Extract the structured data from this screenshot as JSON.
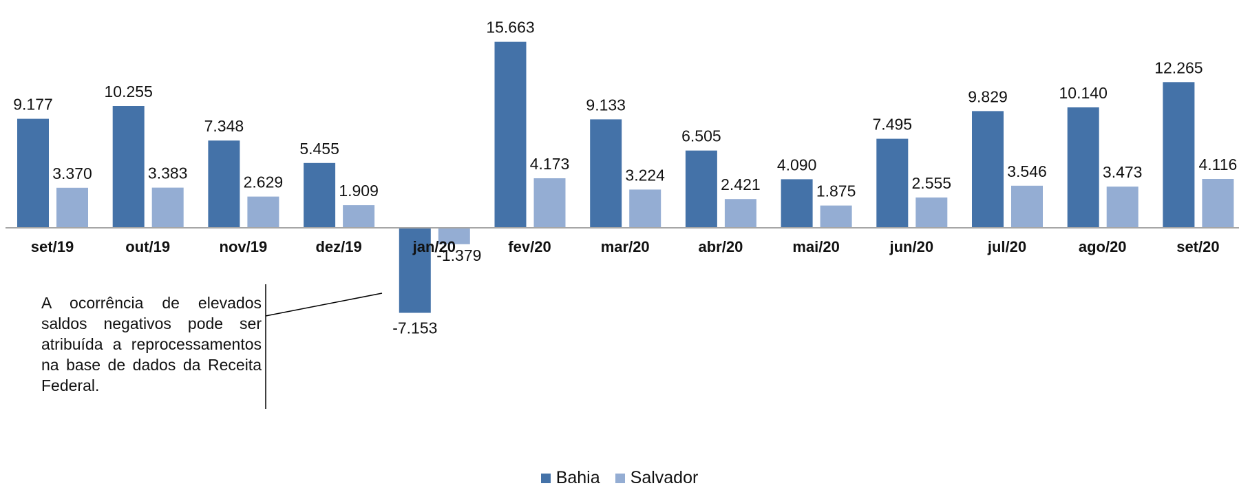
{
  "chart_data": {
    "type": "bar",
    "categories": [
      "set/19",
      "out/19",
      "nov/19",
      "dez/19",
      "jan/20",
      "fev/20",
      "mar/20",
      "abr/20",
      "mai/20",
      "jun/20",
      "jul/20",
      "ago/20",
      "set/20"
    ],
    "series": [
      {
        "name": "Bahia",
        "color": "#4472A8",
        "values": [
          9177,
          10255,
          7348,
          5455,
          -7153,
          15663,
          9133,
          6505,
          4090,
          7495,
          9829,
          10140,
          12265
        ],
        "labels": [
          "9.177",
          "10.255",
          "7.348",
          "5.455",
          "-7.153",
          "15.663",
          "9.133",
          "6.505",
          "4.090",
          "7.495",
          "9.829",
          "10.140",
          "12.265"
        ]
      },
      {
        "name": "Salvador",
        "color": "#94ADD3",
        "values": [
          3370,
          3383,
          2629,
          1909,
          -1379,
          4173,
          3224,
          2421,
          1875,
          2555,
          3546,
          3473,
          4116
        ],
        "labels": [
          "3.370",
          "3.383",
          "2.629",
          "1.909",
          "-1.379",
          "4.173",
          "3.224",
          "2.421",
          "1.875",
          "2.555",
          "3.546",
          "3.473",
          "4.116"
        ]
      }
    ],
    "legend_position": "bottom-center",
    "grid": false,
    "annotation": "A ocorrência de elevados saldos negativos pode ser atribuída a reprocessamentos na base de dados da Receita Federal."
  }
}
